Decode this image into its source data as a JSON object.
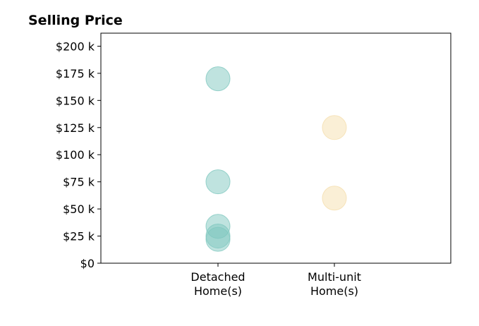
{
  "chart_data": {
    "type": "scatter",
    "title": "Selling Price",
    "xlabel": "",
    "ylabel": "",
    "categories": [
      "Detached\nHome(s)",
      "Multi-unit\nHome(s)"
    ],
    "y_ticks": [
      "$0",
      "$25 k",
      "$50 k",
      "$75 k",
      "$100 k",
      "$125 k",
      "$150 k",
      "$175 k",
      "$200 k"
    ],
    "ylim": [
      0,
      212000
    ],
    "grid": false,
    "series": [
      {
        "color": "#7fc8bf",
        "points": [
          {
            "category": "Detached\nHome(s)",
            "value": 170000
          },
          {
            "category": "Detached\nHome(s)",
            "value": 75000
          },
          {
            "category": "Detached\nHome(s)",
            "value": 34000
          },
          {
            "category": "Detached\nHome(s)",
            "value": 25000
          },
          {
            "category": "Detached\nHome(s)",
            "value": 22000
          }
        ]
      },
      {
        "color": "#f5dfae",
        "points": [
          {
            "category": "Multi-unit\nHome(s)",
            "value": 125000
          },
          {
            "category": "Multi-unit\nHome(s)",
            "value": 60000
          }
        ]
      }
    ]
  }
}
